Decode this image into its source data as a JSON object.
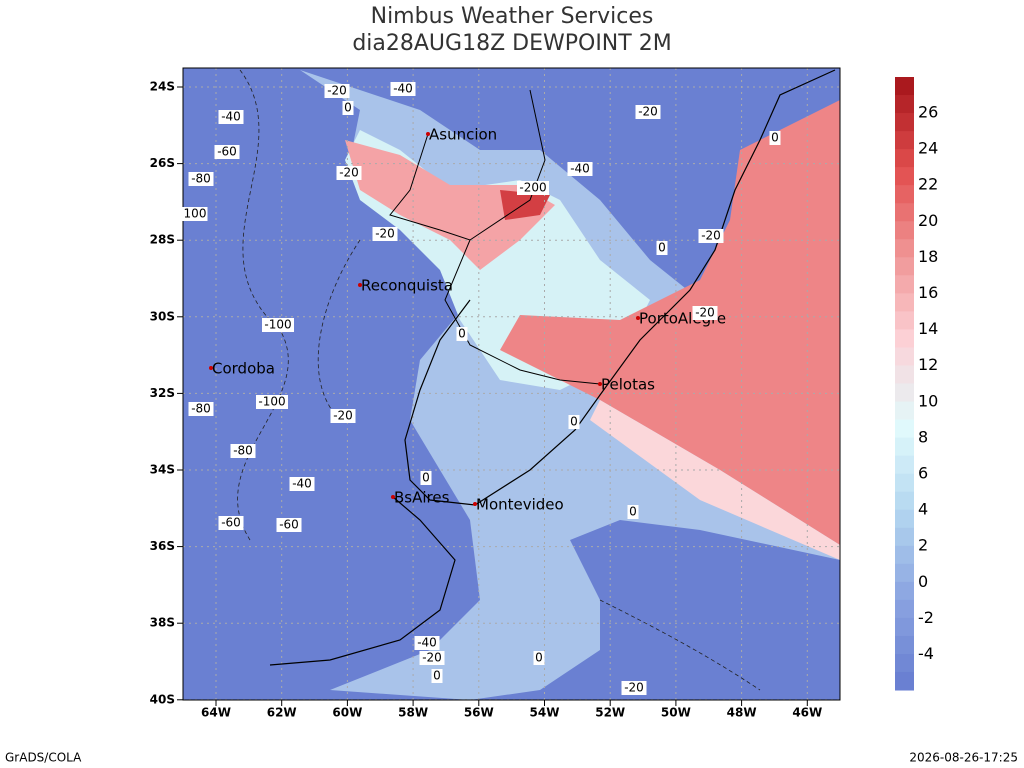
{
  "title": "Nimbus Weather Services",
  "subtitle": "dia28AUG18Z DEWPOINT 2M",
  "lat_labels": [
    "24S",
    "26S",
    "28S",
    "30S",
    "32S",
    "34S",
    "36S",
    "38S",
    "40S"
  ],
  "lon_labels": [
    "64W",
    "62W",
    "60W",
    "58W",
    "56W",
    "54W",
    "52W",
    "50W",
    "48W",
    "46W"
  ],
  "cities": [
    "Asuncion",
    "Reconquista",
    "Cordoba",
    "PortoAlegre",
    "Pelotas",
    "BsAires",
    "Montevideo"
  ],
  "contour_labels": [
    "-20",
    "-40",
    "0",
    "-40",
    "-60",
    "-80",
    "100",
    "-20",
    "-20",
    "-200",
    "-40",
    "-20",
    "0",
    "0",
    "-20",
    "-100",
    "0",
    "-100",
    "-80",
    "-20",
    "-80",
    "0",
    "0",
    "-40",
    "-60",
    "-60",
    "0",
    "-40",
    "-20",
    "0",
    "0",
    "-20",
    "-20"
  ],
  "colorbar_labels": [
    26,
    24,
    22,
    20,
    18,
    16,
    14,
    12,
    10,
    8,
    6,
    4,
    2,
    0,
    -2,
    -4
  ],
  "footer_left": "GrADS/COLA",
  "footer_right": "2026-08-26-17:25"
}
